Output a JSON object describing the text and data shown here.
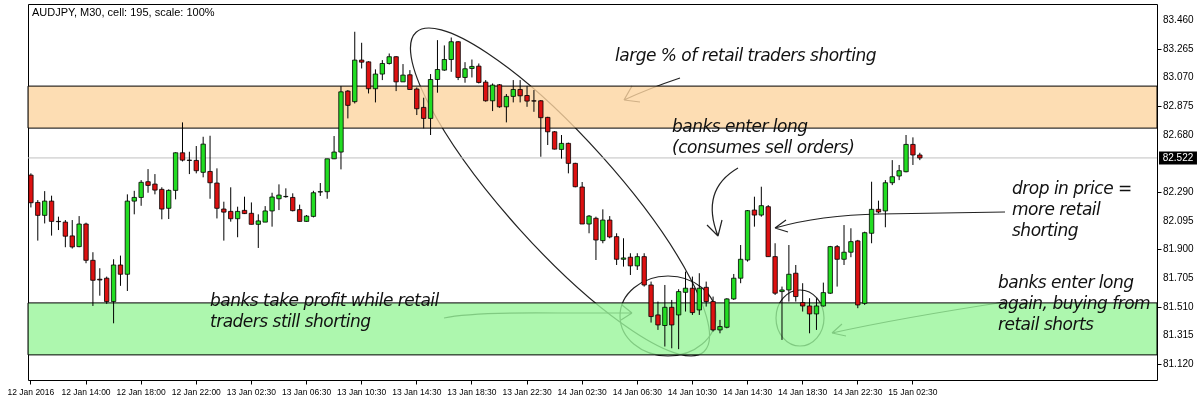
{
  "chart_data": {
    "type": "candlestick",
    "title": "AUDJPY, M30, cell: 195, scale: 100%",
    "annotations": [
      "large % of retail traders shorting",
      "banks enter long (consumes sell orders)",
      "drop in price = more retail shorting",
      "banks take profit while retail traders still shorting",
      "banks enter long again, buying from retail shorts"
    ],
    "categories": [
      "12 Jan 2016",
      null,
      null,
      null,
      null,
      null,
      null,
      null,
      "12 Jan 14:00",
      null,
      null,
      null,
      null,
      null,
      null,
      null,
      "12 Jan 18:00",
      null,
      null,
      null,
      null,
      null,
      null,
      null,
      "12 Jan 22:00",
      null,
      null,
      null,
      null,
      null,
      null,
      null,
      "13 Jan 02:30",
      null,
      null,
      null,
      null,
      null,
      null,
      null,
      "13 Jan 06:30",
      null,
      null,
      null,
      null,
      null,
      null,
      null,
      "13 Jan 10:30",
      null,
      null,
      null,
      null,
      null,
      null,
      null,
      "13 Jan 14:30",
      null,
      null,
      null,
      null,
      null,
      null,
      null,
      "13 Jan 18:30",
      null,
      null,
      null,
      null,
      null,
      null,
      null,
      "13 Jan 22:30",
      null,
      null,
      null,
      null,
      null,
      null,
      null,
      "14 Jan 02:30",
      null,
      null,
      null,
      null,
      null,
      null,
      null,
      "14 Jan 06:30",
      null,
      null,
      null,
      null,
      null,
      null,
      null,
      "14 Jan 10:30",
      null,
      null,
      null,
      null,
      null,
      null,
      null,
      "14 Jan 14:30",
      null,
      null,
      null,
      null,
      null,
      null,
      null,
      "14 Jan 18:30",
      null,
      null,
      null,
      null,
      null,
      null,
      null,
      "14 Jan 22:30",
      null,
      null,
      null,
      null,
      null,
      null,
      null,
      "15 Jan 02:30",
      null,
      null,
      null,
      null,
      null,
      null,
      null,
      null,
      null,
      null,
      null,
      null,
      null,
      null,
      null,
      null,
      null,
      null,
      null,
      null,
      null,
      null,
      null,
      null,
      null,
      null,
      null,
      null,
      null,
      null,
      null,
      null,
      null,
      null,
      null
    ],
    "ohlc": [
      [
        82.405,
        82.417,
        82.185,
        82.217
      ],
      [
        82.219,
        82.235,
        81.959,
        82.131
      ],
      [
        82.131,
        82.296,
        82.076,
        82.228
      ],
      [
        82.228,
        82.265,
        81.993,
        82.09
      ],
      [
        82.09,
        82.122,
        82.031,
        82.088
      ],
      [
        82.085,
        82.099,
        81.914,
        81.989
      ],
      [
        81.991,
        82.099,
        81.905,
        81.916
      ],
      [
        81.918,
        82.126,
        81.914,
        82.072
      ],
      [
        82.072,
        82.081,
        81.805,
        81.825
      ],
      [
        81.825,
        81.88,
        81.514,
        81.689
      ],
      [
        81.696,
        81.771,
        81.584,
        81.691
      ],
      [
        81.703,
        81.714,
        81.528,
        81.544
      ],
      [
        81.544,
        81.832,
        81.396,
        81.793
      ],
      [
        81.793,
        81.857,
        81.651,
        81.73
      ],
      [
        81.73,
        82.274,
        81.616,
        82.228
      ],
      [
        82.228,
        82.298,
        82.138,
        82.253
      ],
      [
        82.253,
        82.371,
        82.196,
        82.356
      ],
      [
        82.36,
        82.446,
        82.285,
        82.335
      ],
      [
        82.344,
        82.412,
        82.274,
        82.303
      ],
      [
        82.308,
        82.322,
        82.104,
        82.174
      ],
      [
        82.179,
        82.308,
        82.106,
        82.301
      ],
      [
        82.301,
        82.56,
        82.24,
        82.557
      ],
      [
        82.557,
        82.764,
        82.498,
        82.507
      ],
      [
        82.507,
        82.564,
        82.412,
        82.505
      ],
      [
        82.505,
        82.603,
        82.417,
        82.435
      ],
      [
        82.424,
        82.666,
        82.39,
        82.616
      ],
      [
        82.43,
        82.673,
        82.244,
        82.353
      ],
      [
        82.351,
        82.451,
        82.11,
        82.179
      ],
      [
        82.174,
        82.224,
        81.959,
        82.153
      ],
      [
        82.158,
        82.322,
        82.088,
        82.108
      ],
      [
        82.108,
        82.19,
        81.982,
        82.158
      ],
      [
        82.165,
        82.258,
        82.14,
        82.143
      ],
      [
        82.145,
        82.219,
        82.07,
        82.07
      ],
      [
        82.07,
        82.138,
        81.909,
        82.093
      ],
      [
        82.085,
        82.194,
        82.085,
        82.161
      ],
      [
        82.161,
        82.285,
        82.054,
        82.256
      ],
      [
        82.244,
        82.342,
        82.167,
        82.269
      ],
      [
        82.258,
        82.315,
        82.251,
        82.26
      ],
      [
        82.253,
        82.281,
        82.158,
        82.163
      ],
      [
        82.17,
        82.204,
        82.09,
        82.09
      ],
      [
        82.09,
        82.133,
        82.088,
        82.126
      ],
      [
        82.124,
        82.298,
        82.117,
        82.285
      ],
      [
        82.29,
        82.351,
        82.263,
        82.292
      ],
      [
        82.292,
        82.516,
        82.244,
        82.516
      ],
      [
        82.516,
        82.671,
        82.514,
        82.562
      ],
      [
        82.562,
        83.011,
        82.444,
        82.972
      ],
      [
        82.977,
        82.984,
        82.791,
        82.88
      ],
      [
        82.905,
        83.381,
        82.893,
        83.188
      ],
      [
        83.188,
        83.306,
        83.131,
        83.174
      ],
      [
        83.176,
        83.18,
        82.961,
        82.993
      ],
      [
        82.993,
        83.125,
        82.9,
        83.093
      ],
      [
        83.093,
        83.188,
        83.052,
        83.165
      ],
      [
        83.165,
        83.233,
        83.158,
        83.211
      ],
      [
        83.211,
        83.215,
        82.977,
        83.04
      ],
      [
        83.04,
        83.161,
        83.04,
        83.086
      ],
      [
        83.088,
        83.12,
        82.988,
        82.988
      ],
      [
        82.991,
        83.002,
        82.814,
        82.857
      ],
      [
        82.866,
        82.932,
        82.723,
        82.791
      ],
      [
        82.791,
        83.093,
        82.678,
        83.056
      ],
      [
        83.056,
        83.324,
        82.966,
        83.124
      ],
      [
        83.12,
        83.288,
        83.115,
        83.192
      ],
      [
        83.192,
        83.342,
        83.108,
        83.313
      ],
      [
        83.313,
        83.317,
        83.052,
        83.07
      ],
      [
        83.07,
        83.174,
        83.034,
        83.129
      ],
      [
        83.131,
        83.192,
        83.07,
        83.145
      ],
      [
        83.147,
        83.165,
        83.029,
        83.036
      ],
      [
        83.038,
        83.052,
        82.905,
        82.911
      ],
      [
        82.911,
        83.029,
        82.841,
        83.018
      ],
      [
        83.02,
        83.025,
        82.864,
        82.87
      ],
      [
        82.87,
        82.957,
        82.764,
        82.941
      ],
      [
        82.941,
        83.052,
        82.9,
        82.988
      ],
      [
        82.988,
        83.052,
        82.9,
        82.945
      ],
      [
        82.947,
        83.011,
        82.87,
        82.909
      ],
      [
        82.911,
        82.984,
        82.836,
        82.909
      ],
      [
        82.911,
        82.916,
        82.53,
        82.796
      ],
      [
        82.798,
        82.802,
        82.61,
        82.7
      ],
      [
        82.7,
        82.705,
        82.58,
        82.582
      ],
      [
        82.58,
        82.678,
        82.517,
        82.621
      ],
      [
        82.621,
        82.626,
        82.417,
        82.485
      ],
      [
        82.485,
        82.489,
        82.322,
        82.326
      ],
      [
        82.324,
        82.358,
        82.072,
        82.072
      ],
      [
        82.072,
        82.133,
        82.009,
        82.126
      ],
      [
        82.111,
        82.122,
        81.827,
        81.963
      ],
      [
        81.959,
        82.172,
        81.941,
        82.099
      ],
      [
        82.099,
        82.126,
        81.975,
        81.984
      ],
      [
        81.986,
        82.009,
        81.793,
        81.832
      ],
      [
        81.832,
        81.975,
        81.782,
        81.841
      ],
      [
        81.846,
        81.873,
        81.725,
        81.787
      ],
      [
        81.787,
        81.873,
        81.759,
        81.85
      ],
      [
        81.85,
        81.873,
        81.646,
        81.657
      ],
      [
        81.657,
        81.68,
        81.401,
        81.442
      ],
      [
        81.453,
        81.544,
        81.351,
        81.385
      ],
      [
        81.381,
        81.657,
        81.238,
        81.505
      ],
      [
        81.505,
        81.555,
        81.226,
        81.385
      ],
      [
        81.453,
        81.628,
        81.22,
        81.612
      ],
      [
        81.607,
        81.748,
        81.476,
        81.635
      ],
      [
        81.635,
        81.714,
        81.453,
        81.469
      ],
      [
        81.487,
        81.737,
        81.453,
        81.635
      ],
      [
        81.641,
        81.68,
        81.51,
        81.544
      ],
      [
        81.544,
        81.578,
        81.34,
        81.351
      ],
      [
        81.351,
        81.419,
        81.328,
        81.374
      ],
      [
        81.369,
        81.567,
        81.362,
        81.562
      ],
      [
        81.562,
        81.732,
        81.555,
        81.703
      ],
      [
        81.703,
        81.929,
        81.669,
        81.832
      ],
      [
        81.827,
        82.167,
        81.816,
        82.163
      ],
      [
        82.167,
        82.258,
        82.054,
        82.133
      ],
      [
        82.133,
        82.326,
        82.122,
        82.197
      ],
      [
        82.19,
        82.201,
        81.85,
        81.85
      ],
      [
        81.85,
        81.941,
        81.589,
        81.601
      ],
      [
        81.612,
        81.646,
        81.283,
        81.623
      ],
      [
        81.623,
        81.929,
        81.544,
        81.73
      ],
      [
        81.737,
        81.793,
        81.544,
        81.578
      ],
      [
        81.537,
        81.669,
        81.476,
        81.514
      ],
      [
        81.514,
        81.567,
        81.328,
        81.46
      ],
      [
        81.46,
        81.567,
        81.351,
        81.514
      ],
      [
        81.514,
        81.673,
        81.51,
        81.605
      ],
      [
        81.601,
        81.923,
        81.596,
        81.918
      ],
      [
        81.918,
        81.929,
        81.646,
        81.832
      ],
      [
        81.832,
        82.065,
        81.793,
        81.88
      ],
      [
        81.88,
        82.043,
        81.846,
        81.952
      ],
      [
        81.957,
        81.964,
        81.499,
        81.521
      ],
      [
        81.532,
        82.02,
        81.521,
        82.013
      ],
      [
        82.009,
        82.36,
        81.941,
        82.172
      ],
      [
        82.172,
        82.231,
        82.145,
        82.154
      ],
      [
        82.161,
        82.371,
        82.05,
        82.353
      ],
      [
        82.353,
        82.507,
        82.337,
        82.394
      ],
      [
        82.399,
        82.474,
        82.371,
        82.435
      ],
      [
        82.428,
        82.678,
        82.424,
        82.614
      ],
      [
        82.614,
        82.662,
        82.474,
        82.542
      ],
      [
        82.542,
        82.557,
        82.507,
        82.522
      ],
      null,
      null,
      null,
      null,
      null,
      null,
      null,
      null,
      null,
      null,
      null,
      null,
      null,
      null,
      null,
      null,
      null,
      null,
      null,
      null,
      null,
      null,
      null,
      null,
      null,
      null,
      null,
      null,
      null,
      null,
      null,
      null,
      null,
      null
    ],
    "colors": [
      "#dd1111",
      "#dd1111",
      "#22dd22",
      "#dd1111",
      "#dd1111",
      "#dd1111",
      "#dd1111",
      "#22dd22",
      "#dd1111",
      "#dd1111",
      "#dd1111",
      "#dd1111",
      "#22dd22",
      "#dd1111",
      "#22dd22",
      "#22dd22",
      "#22dd22",
      "#dd1111",
      "#dd1111",
      "#dd1111",
      "#22dd22",
      "#22dd22",
      "#dd1111",
      "#dd1111",
      "#dd1111",
      "#22dd22",
      "#dd1111",
      "#dd1111",
      "#dd1111",
      "#dd1111",
      "#22dd22",
      "#dd1111",
      "#dd1111",
      "#22dd22",
      "#22dd22",
      "#22dd22",
      "#22dd22",
      "#22dd22",
      "#dd1111",
      "#dd1111",
      "#22dd22",
      "#22dd22",
      "#22dd22",
      "#22dd22",
      "#22dd22",
      "#22dd22",
      "#dd1111",
      "#22dd22",
      "#dd1111",
      "#dd1111",
      "#22dd22",
      "#22dd22",
      "#22dd22",
      "#dd1111",
      "#22dd22",
      "#dd1111",
      "#dd1111",
      "#dd1111",
      "#22dd22",
      "#22dd22",
      "#22dd22",
      "#22dd22",
      "#dd1111",
      "#22dd22",
      "#22dd22",
      "#dd1111",
      "#dd1111",
      "#22dd22",
      "#dd1111",
      "#22dd22",
      "#22dd22",
      "#dd1111",
      "#dd1111",
      "#dd1111",
      "#dd1111",
      "#dd1111",
      "#dd1111",
      "#22dd22",
      "#dd1111",
      "#dd1111",
      "#dd1111",
      "#22dd22",
      "#dd1111",
      "#22dd22",
      "#dd1111",
      "#dd1111",
      "#22dd22",
      "#dd1111",
      "#22dd22",
      "#dd1111",
      "#dd1111",
      "#dd1111",
      "#22dd22",
      "#dd1111",
      "#22dd22",
      "#22dd22",
      "#dd1111",
      "#22dd22",
      "#dd1111",
      "#dd1111",
      "#22dd22",
      "#22dd22",
      "#22dd22",
      "#22dd22",
      "#22dd22",
      "#dd1111",
      "#22dd22",
      "#dd1111",
      "#dd1111",
      "#22dd22",
      "#22dd22",
      "#dd1111",
      "#dd1111",
      "#dd1111",
      "#22dd22",
      "#22dd22",
      "#22dd22",
      "#dd1111",
      "#22dd22",
      "#22dd22",
      "#dd1111",
      "#22dd22",
      "#22dd22",
      "#dd1111",
      "#22dd22",
      "#22dd22",
      "#22dd22",
      "#22dd22",
      "#dd1111",
      "#dd1111",
      null,
      null,
      null,
      null,
      null,
      null,
      null,
      null,
      null,
      null,
      null,
      null,
      null,
      null,
      null,
      null,
      null,
      null,
      null,
      null,
      null,
      null,
      null,
      null,
      null,
      null,
      null,
      null,
      null,
      null,
      null,
      null,
      null,
      null
    ],
    "ylim": [
      81.01,
      83.57
    ],
    "yticks": [
      {
        "value": 83.46,
        "label": "83.460"
      },
      {
        "value": 83.265,
        "label": "83.265"
      },
      {
        "value": 83.07,
        "label": "83.070"
      },
      {
        "value": 82.875,
        "label": "82.875"
      },
      {
        "value": 82.68,
        "label": "82.680"
      },
      {
        "value": 82.29,
        "label": "82.290"
      },
      {
        "value": 82.095,
        "label": "82.095"
      },
      {
        "value": 81.9,
        "label": "81.900"
      },
      {
        "value": 81.705,
        "label": "81.705"
      },
      {
        "value": 81.51,
        "label": "81.510"
      },
      {
        "value": 81.315,
        "label": "81.315"
      },
      {
        "value": 81.12,
        "label": "81.120"
      }
    ],
    "ref_lines": [
      {
        "axis": "y",
        "value": 82.522,
        "label": "82.522",
        "color": "#c0c0c0",
        "line_style": "solid"
      }
    ],
    "bands": [
      {
        "axis": "y",
        "from": 82.725,
        "to": 83.011,
        "color": "#fdd5a0"
      },
      {
        "axis": "y",
        "from": 81.181,
        "to": 81.535,
        "color": "#99f59a"
      }
    ],
    "grid": false
  }
}
